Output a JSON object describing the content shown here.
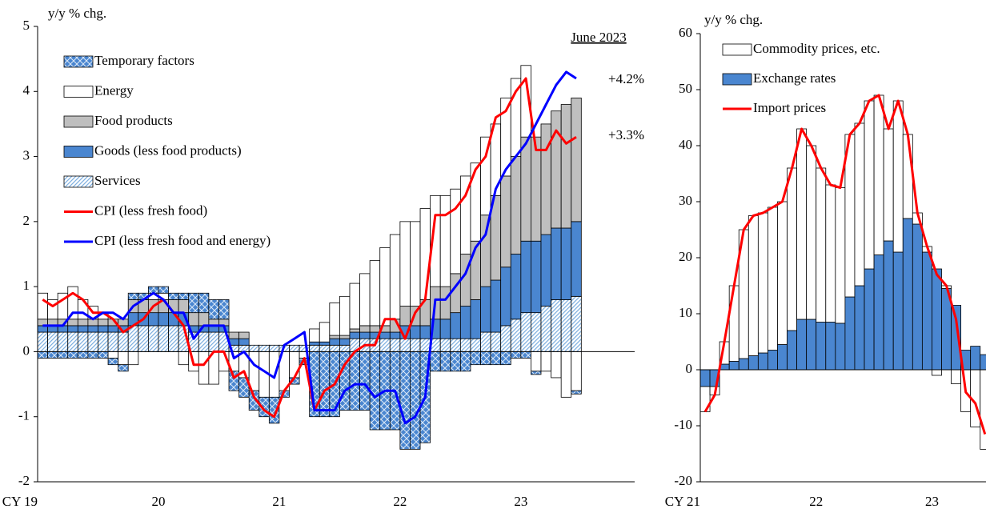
{
  "chart_data": [
    {
      "type": "bar",
      "ylabel": "y/y % chg.",
      "annotations": [
        "June 2023",
        "+4.2%",
        "+3.3%"
      ],
      "categories": [
        "CY 19",
        null,
        null,
        null,
        null,
        null,
        null,
        null,
        null,
        null,
        null,
        null,
        "20",
        null,
        null,
        null,
        null,
        null,
        null,
        null,
        null,
        null,
        null,
        null,
        "21",
        null,
        null,
        null,
        null,
        null,
        null,
        null,
        null,
        null,
        null,
        null,
        "22",
        null,
        null,
        null,
        null,
        null,
        null,
        null,
        null,
        null,
        null,
        null,
        "23",
        null,
        null,
        null,
        null,
        null
      ],
      "ylim": [
        -2,
        5
      ],
      "yticks": [
        -2,
        -1,
        0,
        1,
        2,
        3,
        4,
        5
      ],
      "series": [
        {
          "name": "Temporary factors",
          "type": "bar",
          "color": "#4a86d0",
          "pattern": "crosshatch",
          "values": [
            -0.1,
            -0.1,
            -0.1,
            -0.1,
            -0.1,
            -0.1,
            -0.1,
            -0.1,
            -0.1,
            0.1,
            0.1,
            0.1,
            0.1,
            0.1,
            0.1,
            0.3,
            0.3,
            0.3,
            0.3,
            -0.3,
            -0.3,
            -0.3,
            -0.3,
            -0.4,
            -0.1,
            -0.1,
            -0.1,
            -1.0,
            -1.0,
            -1.0,
            -0.9,
            -0.9,
            -0.9,
            -1.2,
            -1.2,
            -1.2,
            -1.5,
            -1.5,
            -1.4,
            -0.3,
            -0.3,
            -0.3,
            -0.3,
            -0.2,
            -0.2,
            -0.2,
            -0.2,
            -0.1,
            -0.1,
            -0.05,
            0,
            0,
            0,
            -0.05
          ]
        },
        {
          "name": "Energy",
          "type": "bar",
          "color": "#ffffff",
          "values": [
            0.4,
            0.3,
            0.4,
            0.5,
            0.3,
            0.2,
            0.1,
            -0.1,
            -0.2,
            -0.2,
            0,
            0.1,
            0.1,
            0,
            -0.2,
            -0.3,
            -0.5,
            -0.5,
            -0.3,
            -0.3,
            -0.4,
            -0.6,
            -0.7,
            -0.7,
            -0.6,
            -0.4,
            -0.1,
            0.2,
            0.3,
            0.5,
            0.6,
            0.7,
            0.8,
            1.0,
            1.2,
            1.3,
            1.3,
            1.3,
            1.4,
            1.4,
            1.4,
            1.3,
            1.2,
            1.2,
            1.2,
            1.1,
            1.2,
            1.2,
            1.1,
            -0.3,
            -0.3,
            -0.4,
            -0.7,
            -0.6
          ]
        },
        {
          "name": "Food products",
          "type": "bar",
          "color": "#bfbfbf",
          "values": [
            0.1,
            0.1,
            0.1,
            0.1,
            0.1,
            0.1,
            0.1,
            0.1,
            0.1,
            0.2,
            0.2,
            0.2,
            0.2,
            0.2,
            0.2,
            0.2,
            0.2,
            0.1,
            0.1,
            0.1,
            0.1,
            0,
            0,
            0,
            0,
            0,
            0,
            0,
            0,
            0.05,
            0.05,
            0.05,
            0.1,
            0.1,
            0.1,
            0.2,
            0.3,
            0.3,
            0.4,
            0.5,
            0.5,
            0.6,
            0.8,
            0.9,
            1.1,
            1.3,
            1.4,
            1.5,
            1.6,
            1.6,
            1.7,
            1.8,
            1.9,
            1.9
          ]
        },
        {
          "name": "Goods (less food products)",
          "type": "bar",
          "color": "#4a86d0",
          "values": [
            0.1,
            0.1,
            0.1,
            0.1,
            0.1,
            0.1,
            0.1,
            0.1,
            0.1,
            0.2,
            0.2,
            0.2,
            0.2,
            0.2,
            0.2,
            0.1,
            0.1,
            0.1,
            0.1,
            0.1,
            0.1,
            0,
            0,
            0,
            0,
            0,
            0,
            0.05,
            0.05,
            0.1,
            0.1,
            0.1,
            0.1,
            0.1,
            0.1,
            0.1,
            0.2,
            0.2,
            0.2,
            0.3,
            0.3,
            0.4,
            0.5,
            0.6,
            0.7,
            0.8,
            0.9,
            1.0,
            1.1,
            1.1,
            1.1,
            1.1,
            1.1,
            1.15
          ]
        },
        {
          "name": "Services",
          "type": "bar",
          "color": "#9dc3e6",
          "pattern": "diagonal",
          "values": [
            0.3,
            0.3,
            0.3,
            0.3,
            0.3,
            0.3,
            0.3,
            0.3,
            0.3,
            0.4,
            0.4,
            0.4,
            0.4,
            0.4,
            0.4,
            0.3,
            0.3,
            0.3,
            0.3,
            0.1,
            0.1,
            0.1,
            0.1,
            0.1,
            0.1,
            0.1,
            0.1,
            0.1,
            0.1,
            0.1,
            0.1,
            0.2,
            0.2,
            0.2,
            0.2,
            0.2,
            0.2,
            0.2,
            0.2,
            0.2,
            0.2,
            0.2,
            0.2,
            0.2,
            0.3,
            0.3,
            0.4,
            0.5,
            0.6,
            0.6,
            0.7,
            0.8,
            0.8,
            0.85
          ]
        },
        {
          "name": "CPI (less fresh food)",
          "type": "line",
          "color": "#ff0000",
          "values": [
            0.8,
            0.7,
            0.8,
            0.9,
            0.8,
            0.6,
            0.6,
            0.5,
            0.3,
            0.4,
            0.5,
            0.7,
            0.8,
            0.6,
            0.4,
            -0.2,
            -0.2,
            0.0,
            0.0,
            -0.4,
            -0.3,
            -0.7,
            -0.9,
            -1.0,
            -0.6,
            -0.4,
            -0.1,
            -0.9,
            -0.6,
            -0.5,
            -0.2,
            0.0,
            0.1,
            0.1,
            0.5,
            0.5,
            0.2,
            0.6,
            0.8,
            2.1,
            2.1,
            2.2,
            2.4,
            2.8,
            3.0,
            3.6,
            3.7,
            4.0,
            4.2,
            3.1,
            3.1,
            3.4,
            3.2,
            3.3
          ]
        },
        {
          "name": "CPI (less fresh food and energy)",
          "type": "line",
          "color": "#0000ff",
          "values": [
            0.4,
            0.4,
            0.4,
            0.6,
            0.6,
            0.5,
            0.6,
            0.6,
            0.5,
            0.7,
            0.8,
            0.9,
            0.8,
            0.6,
            0.6,
            0.2,
            0.4,
            0.4,
            0.4,
            -0.1,
            0.0,
            -0.2,
            -0.3,
            -0.4,
            0.1,
            0.2,
            0.3,
            -0.9,
            -0.9,
            -0.9,
            -0.6,
            -0.5,
            -0.5,
            -0.7,
            -0.6,
            -0.6,
            -1.1,
            -1.0,
            -0.7,
            0.8,
            0.8,
            1.0,
            1.2,
            1.6,
            1.8,
            2.5,
            2.8,
            3.0,
            3.2,
            3.5,
            3.8,
            4.1,
            4.3,
            4.2
          ]
        }
      ]
    },
    {
      "type": "bar",
      "ylabel": "y/y % chg.",
      "categories": [
        "CY 21",
        null,
        null,
        null,
        null,
        null,
        null,
        null,
        null,
        null,
        null,
        null,
        "22",
        null,
        null,
        null,
        null,
        null,
        null,
        null,
        null,
        null,
        null,
        null,
        "23",
        null,
        null,
        null,
        null,
        null
      ],
      "ylim": [
        -20,
        60
      ],
      "yticks": [
        -20,
        -10,
        0,
        10,
        20,
        30,
        40,
        50,
        60
      ],
      "series": [
        {
          "name": "Commodity prices, etc.",
          "type": "bar",
          "color": "#ffffff",
          "values": [
            -4.5,
            -1.5,
            4,
            13.5,
            23,
            25,
            25,
            25.5,
            25.5,
            29,
            34,
            31,
            27.5,
            24.5,
            24.2,
            29,
            29,
            30,
            28.5,
            20,
            27,
            15,
            2,
            1,
            -1,
            0.5,
            -2.5,
            -7.5,
            -10.2,
            -14.2
          ]
        },
        {
          "name": "Exchange rates",
          "type": "bar",
          "color": "#4a86d0",
          "values": [
            -3,
            -3,
            1,
            1.5,
            2,
            2.5,
            3,
            3.5,
            4.5,
            7,
            9,
            9,
            8.5,
            8.5,
            8.3,
            13,
            15,
            18,
            20.5,
            23,
            21,
            27,
            26,
            21,
            18,
            14.5,
            11.5,
            3.5,
            4.2,
            2.7
          ]
        },
        {
          "name": "Import prices",
          "type": "line",
          "color": "#ff0000",
          "values": [
            -7.5,
            -4.5,
            5,
            15,
            25,
            27.5,
            28,
            29,
            30,
            36,
            43,
            40,
            36,
            33,
            32.5,
            42,
            44,
            48,
            49,
            43,
            48,
            42,
            28,
            22,
            17,
            15,
            9,
            -4,
            -6,
            -11.5
          ]
        }
      ]
    }
  ]
}
